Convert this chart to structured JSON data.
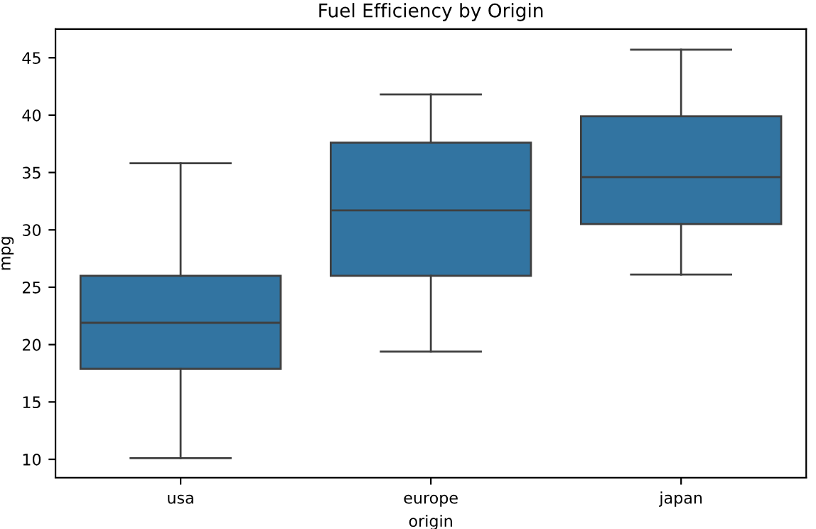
{
  "chart_data": {
    "type": "box",
    "title": "Fuel Efficiency by Origin",
    "xlabel": "origin",
    "ylabel": "mpg",
    "categories": [
      "usa",
      "europe",
      "japan"
    ],
    "color": "#3274a1",
    "boxes": [
      {
        "low": 10.1,
        "q1": 17.9,
        "median": 21.9,
        "q3": 26.0,
        "high": 35.8
      },
      {
        "low": 19.4,
        "q1": 26.0,
        "median": 31.7,
        "q3": 37.6,
        "high": 41.8
      },
      {
        "low": 26.1,
        "q1": 30.5,
        "median": 34.6,
        "q3": 39.9,
        "high": 45.7
      }
    ],
    "ylim": [
      8.4,
      47.5
    ],
    "yticks": [
      10,
      15,
      20,
      25,
      30,
      35,
      40,
      45
    ],
    "grid": false
  }
}
